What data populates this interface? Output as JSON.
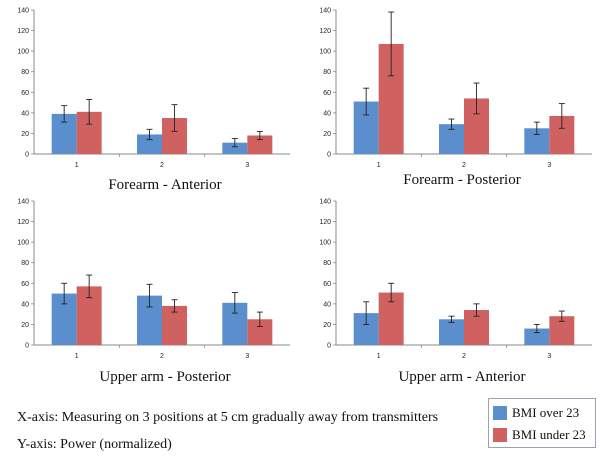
{
  "chart_data": [
    {
      "type": "bar",
      "title": "Forearm - Anterior",
      "categories": [
        "1",
        "2",
        "3"
      ],
      "ylim": [
        0,
        140
      ],
      "yticks": [
        0,
        20,
        40,
        60,
        80,
        100,
        120,
        140
      ],
      "series": [
        {
          "name": "BMI over 23",
          "values": [
            39,
            19,
            11
          ],
          "errors": [
            8,
            5,
            4
          ]
        },
        {
          "name": "BMI under 23",
          "values": [
            41,
            35,
            18
          ],
          "errors": [
            12,
            13,
            4
          ]
        }
      ]
    },
    {
      "type": "bar",
      "title": "Forearm - Posterior",
      "categories": [
        "1",
        "2",
        "3"
      ],
      "ylim": [
        0,
        140
      ],
      "yticks": [
        0,
        20,
        40,
        60,
        80,
        100,
        120,
        140
      ],
      "series": [
        {
          "name": "BMI over 23",
          "values": [
            51,
            29,
            25
          ],
          "errors": [
            13,
            5,
            6
          ]
        },
        {
          "name": "BMI under 23",
          "values": [
            107,
            54,
            37
          ],
          "errors": [
            31,
            15,
            12
          ]
        }
      ]
    },
    {
      "type": "bar",
      "title": "Upper arm - Posterior",
      "categories": [
        "1",
        "2",
        "3"
      ],
      "ylim": [
        0,
        140
      ],
      "yticks": [
        0,
        20,
        40,
        60,
        80,
        100,
        120,
        140
      ],
      "series": [
        {
          "name": "BMI over 23",
          "values": [
            50,
            48,
            41
          ],
          "errors": [
            10,
            11,
            10
          ]
        },
        {
          "name": "BMI under 23",
          "values": [
            57,
            38,
            25
          ],
          "errors": [
            11,
            6,
            7
          ]
        }
      ]
    },
    {
      "type": "bar",
      "title": "Upper arm - Anterior",
      "categories": [
        "1",
        "2",
        "3"
      ],
      "ylim": [
        0,
        140
      ],
      "yticks": [
        0,
        20,
        40,
        60,
        80,
        100,
        120,
        140
      ],
      "series": [
        {
          "name": "BMI over 23",
          "values": [
            31,
            25,
            16
          ],
          "errors": [
            11,
            3,
            4
          ]
        },
        {
          "name": "BMI under 23",
          "values": [
            51,
            34,
            28
          ],
          "errors": [
            9,
            6,
            5
          ]
        }
      ]
    }
  ],
  "colors": {
    "series_1": "#5b8ecc",
    "series_2": "#cf6260",
    "axis": "#888888",
    "error_bar": "#222222"
  },
  "notes": {
    "x_axis": "X-axis: Measuring on 3 positions at 5 cm gradually away from transmitters",
    "y_axis": "Y-axis: Power (normalized)"
  },
  "legend": {
    "items": [
      {
        "label": "BMI over 23",
        "color": "#5b8ecc"
      },
      {
        "label": "BMI under 23",
        "color": "#cf6260"
      }
    ]
  }
}
